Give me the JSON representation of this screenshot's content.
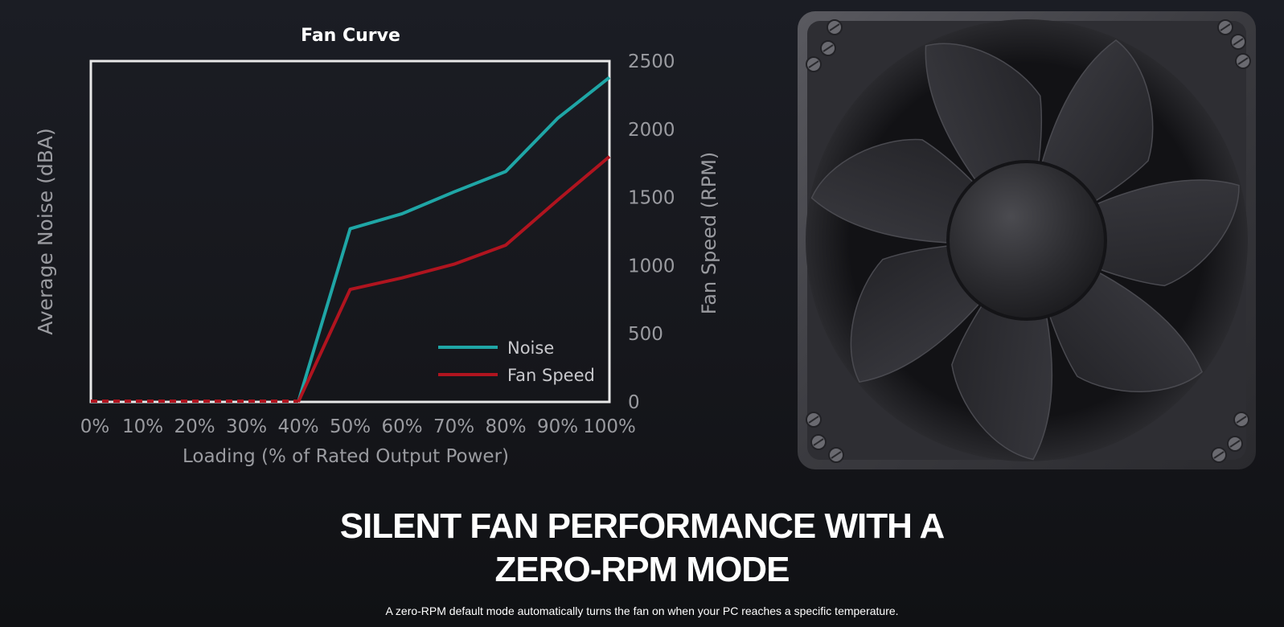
{
  "chart_data": {
    "type": "line",
    "title": "Fan Curve",
    "xlabel": "Loading (% of Rated Output Power)",
    "ylabel": "Average Noise (dBA)",
    "y2label": "Fan Speed (RPM)",
    "categories": [
      "0%",
      "10%",
      "20%",
      "30%",
      "40%",
      "50%",
      "60%",
      "70%",
      "80%",
      "90%",
      "100%"
    ],
    "x": [
      0,
      10,
      20,
      30,
      40,
      50,
      60,
      70,
      80,
      90,
      100
    ],
    "y2lim": [
      0,
      2500
    ],
    "y2ticks": [
      "0",
      "500",
      "1000",
      "1500",
      "2000",
      "2500"
    ],
    "series": [
      {
        "name": "Noise",
        "color": "#1fa6a6",
        "values": [
          0,
          0,
          0,
          0,
          0,
          1270,
          1380,
          1540,
          1690,
          2080,
          2380
        ]
      },
      {
        "name": "Fan Speed",
        "color": "#b0141f",
        "values": [
          0,
          0,
          0,
          0,
          0,
          825,
          910,
          1010,
          1150,
          1480,
          1800
        ]
      }
    ],
    "legend_position": "bottom-right",
    "grid": false
  },
  "headline": {
    "line1": "SILENT FAN PERFORMANCE WITH A",
    "line2": "ZERO-RPM MODE"
  },
  "description": "A zero-RPM default mode automatically turns the fan on when your PC reaches a specific temperature."
}
